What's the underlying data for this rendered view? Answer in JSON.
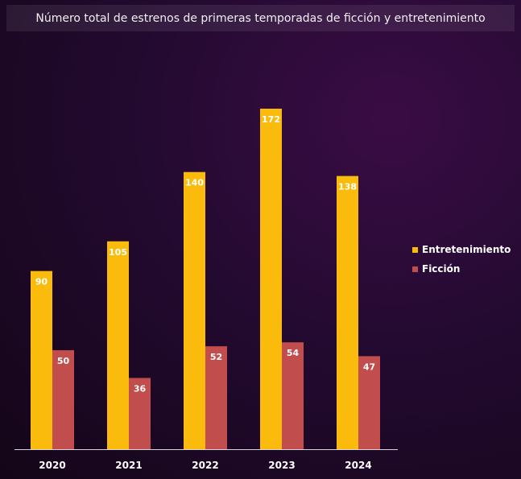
{
  "chart_data": {
    "type": "bar",
    "title": "Número total de estrenos de primeras temporadas de ficción y entretenimiento",
    "categories": [
      "2020",
      "2021",
      "2022",
      "2023",
      "2024"
    ],
    "series": [
      {
        "name": "Entretenimiento",
        "color": "#fbbb0d",
        "values": [
          90,
          105,
          140,
          172,
          138
        ]
      },
      {
        "name": "Ficción",
        "color": "#c24d4d",
        "values": [
          50,
          36,
          52,
          54,
          47
        ]
      }
    ],
    "xlabel": "",
    "ylabel": "",
    "ylim": [
      0,
      172
    ],
    "grid": false,
    "legend": "right"
  }
}
